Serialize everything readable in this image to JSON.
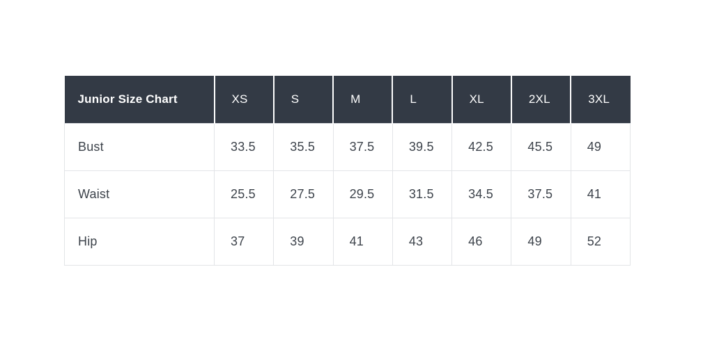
{
  "theme": {
    "page_bg": "#ffffff",
    "header_bg": "#333a45",
    "header_text": "#ffffff",
    "body_text": "#3d434b",
    "cell_border": "#e2e4e7",
    "header_separator": "#ffffff"
  },
  "chart_data": {
    "type": "table",
    "title": "Junior Size Chart",
    "columns": [
      "Junior Size Chart",
      "XS",
      "S",
      "M",
      "L",
      "XL",
      "2XL",
      "3XL"
    ],
    "rows": [
      [
        "Bust",
        "33.5",
        "35.5",
        "37.5",
        "39.5",
        "42.5",
        "45.5",
        "49"
      ],
      [
        "Waist",
        "25.5",
        "27.5",
        "29.5",
        "31.5",
        "34.5",
        "37.5",
        "41"
      ],
      [
        "Hip",
        "37",
        "39",
        "41",
        "43",
        "46",
        "49",
        "52"
      ]
    ],
    "layout": {
      "header_row": "dark background, white text, left-aligned",
      "body": "white background, light gray 1px cell borders, left-aligned values",
      "grid": "on"
    }
  }
}
